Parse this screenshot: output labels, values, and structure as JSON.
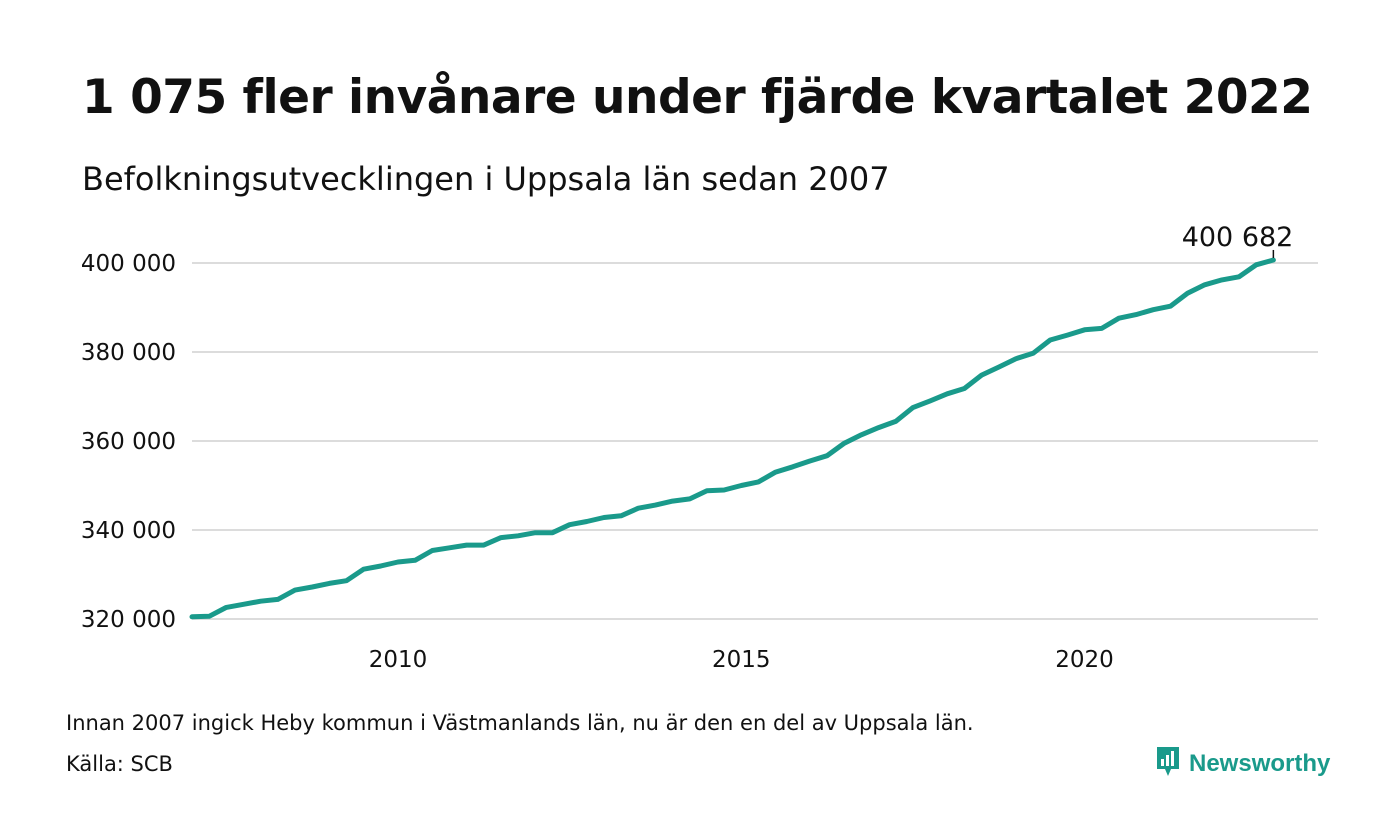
{
  "title": "1 075 fler invånare under fjärde kvartalet 2022",
  "subtitle": "Befolkningsutvecklingen i Uppsala län sedan 2007",
  "note": "Innan 2007 ingick Heby kommun i Västmanlands län, nu är den en del av Uppsala län.",
  "source": "Källa: SCB",
  "brand": {
    "name": "Newsworthy",
    "icon": "newsworthy-logo-icon",
    "color": "#1a9a8b"
  },
  "chart_data": {
    "type": "line",
    "color": "#1a9a8b",
    "grid": true,
    "ylim": [
      320000,
      400000
    ],
    "xlim": [
      2007.0,
      2023.4
    ],
    "yticks": [
      400000,
      380000,
      360000,
      340000,
      320000
    ],
    "ytick_labels": [
      "400 000",
      "380 000",
      "360 000",
      "340 000",
      "320 000"
    ],
    "xticks": [
      2010,
      2015,
      2020
    ],
    "xtick_labels": [
      "2010",
      "2015",
      "2020"
    ],
    "last_label": "400 682",
    "series": [
      {
        "x": [
          2007.0,
          2007.25,
          2007.5,
          2007.75,
          2008.0,
          2008.25,
          2008.5,
          2008.75,
          2009.0,
          2009.25,
          2009.5,
          2009.75,
          2010.0,
          2010.25,
          2010.5,
          2010.75,
          2011.0,
          2011.25,
          2011.5,
          2011.75,
          2012.0,
          2012.25,
          2012.5,
          2012.75,
          2013.0,
          2013.25,
          2013.5,
          2013.75,
          2014.0,
          2014.25,
          2014.5,
          2014.75,
          2015.0,
          2015.25,
          2015.5,
          2015.75,
          2016.0,
          2016.25,
          2016.5,
          2016.75,
          2017.0,
          2017.25,
          2017.5,
          2017.75,
          2018.0,
          2018.25,
          2018.5,
          2018.75,
          2019.0,
          2019.25,
          2019.5,
          2019.75,
          2020.0,
          2020.25,
          2020.5,
          2020.75,
          2021.0,
          2021.25,
          2021.5,
          2021.75,
          2022.0,
          2022.25,
          2022.5,
          2022.75
        ],
        "values": [
          320500,
          320600,
          322600,
          323300,
          324000,
          324400,
          326500,
          327200,
          328000,
          328600,
          331200,
          331900,
          332800,
          333200,
          335400,
          336000,
          336600,
          336600,
          338300,
          338700,
          339400,
          339400,
          341200,
          341900,
          342800,
          343200,
          344900,
          345600,
          346500,
          347000,
          348800,
          349000,
          350000,
          350800,
          353000,
          354200,
          355500,
          356700,
          359500,
          361400,
          363000,
          364400,
          367500,
          369000,
          370600,
          371800,
          374800,
          376600,
          378500,
          379700,
          382700,
          383800,
          385000,
          385300,
          387600,
          388400,
          389500,
          390300,
          393200,
          395100,
          396200,
          396900,
          399600,
          400682
        ]
      }
    ]
  }
}
